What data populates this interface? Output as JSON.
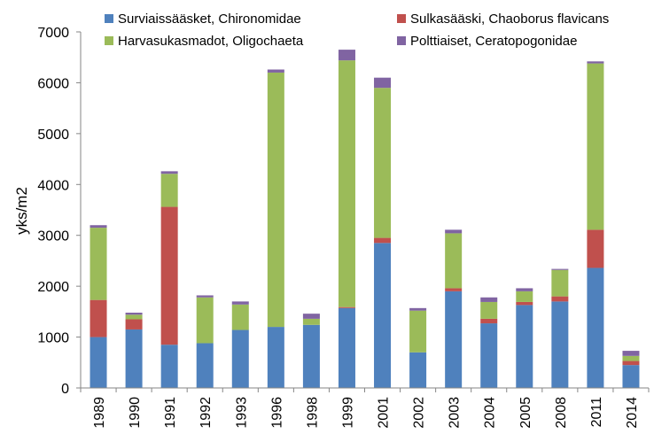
{
  "chart_data": {
    "type": "bar",
    "stacked": true,
    "categories": [
      "1989",
      "1990",
      "1991",
      "1992",
      "1993",
      "1996",
      "1998",
      "1999",
      "2001",
      "2002",
      "2003",
      "2004",
      "2005",
      "2008",
      "2011",
      "2014"
    ],
    "series": [
      {
        "name": "Surviaissääsket, Chironomidae",
        "color": "#4f81bd",
        "values": [
          1000,
          1150,
          850,
          880,
          1140,
          1200,
          1240,
          1570,
          2850,
          700,
          1900,
          1270,
          1630,
          1700,
          2360,
          450
        ]
      },
      {
        "name": "Sulkasääski, Chaoborus flavicans",
        "color": "#c0504d",
        "values": [
          730,
          200,
          2710,
          0,
          0,
          0,
          0,
          20,
          100,
          0,
          60,
          90,
          60,
          100,
          750,
          80
        ]
      },
      {
        "name": "Harvasukasmadot, Oligochaeta",
        "color": "#9bbb59",
        "values": [
          1420,
          90,
          650,
          900,
          500,
          5000,
          120,
          4850,
          2950,
          820,
          1080,
          330,
          210,
          520,
          3270,
          100
        ]
      },
      {
        "name": "Polttiaiset, Ceratopogonidae",
        "color": "#8064a2",
        "values": [
          50,
          40,
          50,
          40,
          60,
          60,
          100,
          210,
          200,
          50,
          70,
          90,
          60,
          20,
          40,
          100
        ]
      }
    ],
    "ylabel": "yks/m2",
    "ylim": [
      0,
      7000
    ],
    "yticks": [
      0,
      1000,
      2000,
      3000,
      4000,
      5000,
      6000,
      7000
    ],
    "grid": false,
    "legend_position": "top"
  }
}
